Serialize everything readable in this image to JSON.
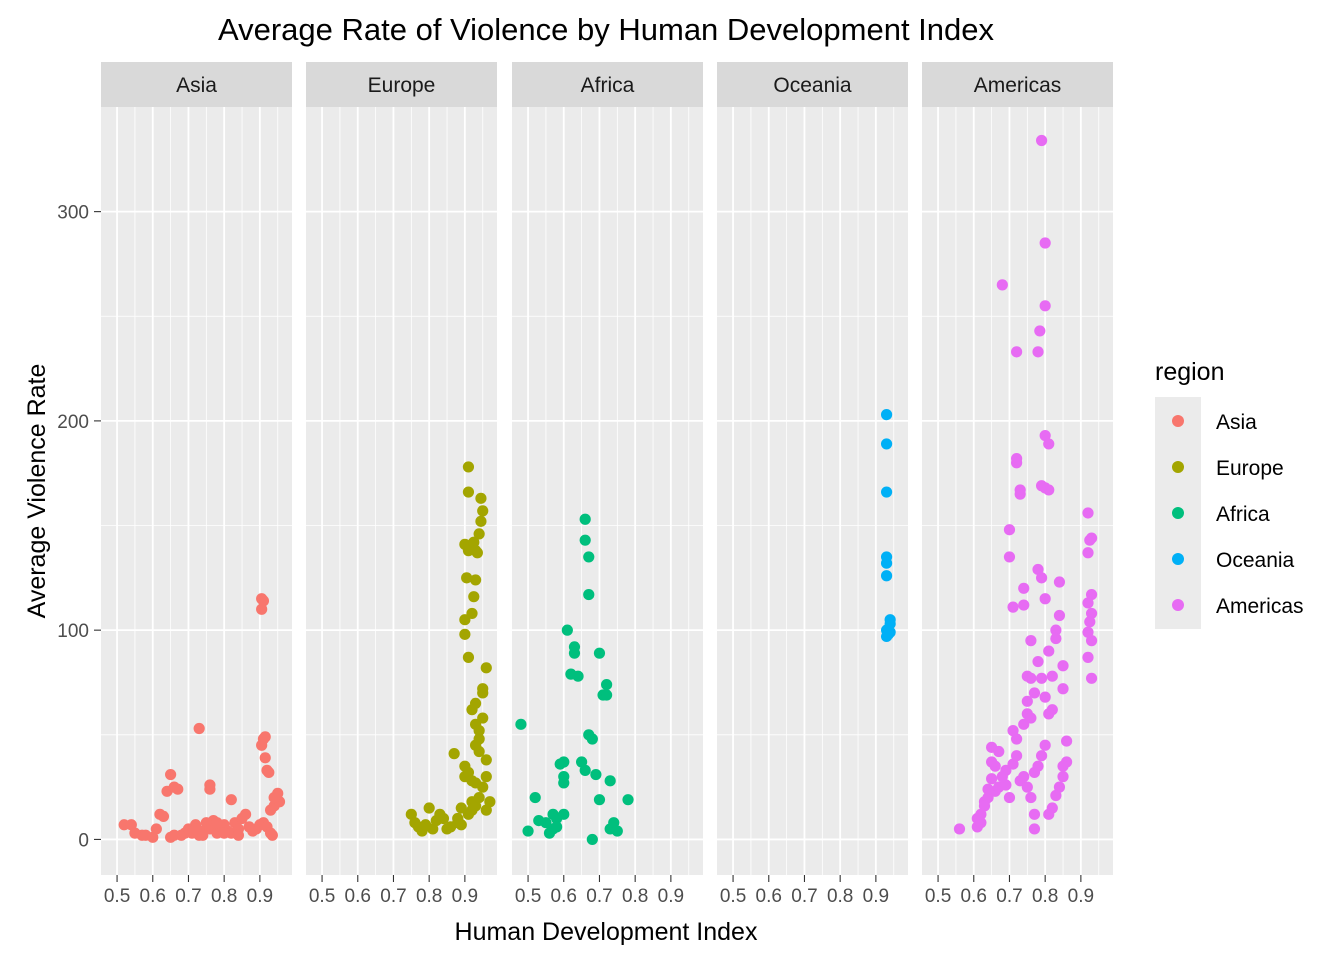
{
  "chart_data": {
    "type": "scatter",
    "title": "Average Rate of Violence by Human Development Index",
    "xlabel": "Human Development Index",
    "ylabel": "Average Violence Rate",
    "xlim": [
      0.455,
      0.99
    ],
    "ylim": [
      -17,
      350
    ],
    "x_ticks": [
      0.5,
      0.6,
      0.7,
      0.8,
      0.9
    ],
    "x_tick_labels": [
      "0.5",
      "0.6",
      "0.7",
      "0.8",
      "0.9"
    ],
    "y_ticks": [
      0,
      100,
      200,
      300
    ],
    "y_tick_labels": [
      "0",
      "100",
      "200",
      "300"
    ],
    "grid": true,
    "facet_by": "region",
    "legend": {
      "title": "region",
      "position": "right",
      "entries": [
        "Asia",
        "Europe",
        "Africa",
        "Oceania",
        "Americas"
      ]
    },
    "series": [
      {
        "name": "Asia",
        "color": "#F8766D",
        "points": [
          [
            0.52,
            7
          ],
          [
            0.54,
            7
          ],
          [
            0.55,
            3
          ],
          [
            0.57,
            2
          ],
          [
            0.58,
            2
          ],
          [
            0.6,
            1
          ],
          [
            0.61,
            5
          ],
          [
            0.62,
            12
          ],
          [
            0.63,
            11
          ],
          [
            0.64,
            23
          ],
          [
            0.65,
            31
          ],
          [
            0.66,
            25
          ],
          [
            0.67,
            24
          ],
          [
            0.73,
            53
          ],
          [
            0.76,
            24
          ],
          [
            0.76,
            26
          ],
          [
            0.82,
            19
          ],
          [
            0.65,
            1
          ],
          [
            0.66,
            2
          ],
          [
            0.68,
            2
          ],
          [
            0.69,
            3
          ],
          [
            0.7,
            5
          ],
          [
            0.71,
            3
          ],
          [
            0.72,
            7
          ],
          [
            0.73,
            2
          ],
          [
            0.74,
            4
          ],
          [
            0.75,
            8
          ],
          [
            0.76,
            5
          ],
          [
            0.77,
            9
          ],
          [
            0.78,
            3
          ],
          [
            0.79,
            6
          ],
          [
            0.8,
            7
          ],
          [
            0.81,
            4
          ],
          [
            0.82,
            3
          ],
          [
            0.83,
            8
          ],
          [
            0.84,
            5
          ],
          [
            0.85,
            10
          ],
          [
            0.86,
            12
          ],
          [
            0.87,
            6
          ],
          [
            0.88,
            4
          ],
          [
            0.89,
            5
          ],
          [
            0.9,
            7
          ],
          [
            0.91,
            8
          ],
          [
            0.92,
            6
          ],
          [
            0.905,
            115
          ],
          [
            0.91,
            114
          ],
          [
            0.905,
            110
          ],
          [
            0.91,
            48
          ],
          [
            0.915,
            49
          ],
          [
            0.905,
            45
          ],
          [
            0.915,
            39
          ],
          [
            0.92,
            33
          ],
          [
            0.925,
            32
          ],
          [
            0.93,
            14
          ],
          [
            0.94,
            16
          ],
          [
            0.95,
            22
          ],
          [
            0.955,
            18
          ],
          [
            0.94,
            20
          ],
          [
            0.935,
            2
          ],
          [
            0.93,
            3
          ],
          [
            0.72,
            5
          ],
          [
            0.74,
            2
          ],
          [
            0.78,
            8
          ],
          [
            0.8,
            3
          ],
          [
            0.84,
            2
          ]
        ]
      },
      {
        "name": "Europe",
        "color": "#A3A500",
        "points": [
          [
            0.75,
            12
          ],
          [
            0.76,
            8
          ],
          [
            0.77,
            6
          ],
          [
            0.78,
            4
          ],
          [
            0.79,
            7
          ],
          [
            0.8,
            15
          ],
          [
            0.81,
            5
          ],
          [
            0.82,
            9
          ],
          [
            0.83,
            12
          ],
          [
            0.84,
            10
          ],
          [
            0.85,
            5
          ],
          [
            0.86,
            6
          ],
          [
            0.87,
            41
          ],
          [
            0.88,
            8
          ],
          [
            0.89,
            7
          ],
          [
            0.9,
            30
          ],
          [
            0.9,
            35
          ],
          [
            0.91,
            32
          ],
          [
            0.92,
            28
          ],
          [
            0.92,
            62
          ],
          [
            0.93,
            65
          ],
          [
            0.93,
            55
          ],
          [
            0.94,
            48
          ],
          [
            0.94,
            42
          ],
          [
            0.95,
            58
          ],
          [
            0.95,
            72
          ],
          [
            0.96,
            82
          ],
          [
            0.95,
            70
          ],
          [
            0.96,
            38
          ],
          [
            0.93,
            27
          ],
          [
            0.92,
            18
          ],
          [
            0.9,
            98
          ],
          [
            0.9,
            105
          ],
          [
            0.91,
            87
          ],
          [
            0.92,
            108
          ],
          [
            0.925,
            116
          ],
          [
            0.93,
            124
          ],
          [
            0.905,
            125
          ],
          [
            0.9,
            141
          ],
          [
            0.91,
            138
          ],
          [
            0.915,
            139
          ],
          [
            0.92,
            140
          ],
          [
            0.925,
            142
          ],
          [
            0.93,
            138
          ],
          [
            0.935,
            137
          ],
          [
            0.94,
            146
          ],
          [
            0.945,
            152
          ],
          [
            0.95,
            157
          ],
          [
            0.945,
            163
          ],
          [
            0.91,
            166
          ],
          [
            0.91,
            178
          ],
          [
            0.91,
            12
          ],
          [
            0.92,
            14
          ],
          [
            0.93,
            16
          ],
          [
            0.94,
            20
          ],
          [
            0.95,
            25
          ],
          [
            0.96,
            30
          ],
          [
            0.96,
            14
          ],
          [
            0.97,
            18
          ],
          [
            0.88,
            10
          ],
          [
            0.89,
            15
          ],
          [
            0.93,
            45
          ],
          [
            0.94,
            52
          ]
        ]
      },
      {
        "name": "Africa",
        "color": "#00BF7D",
        "points": [
          [
            0.48,
            55
          ],
          [
            0.5,
            4
          ],
          [
            0.52,
            20
          ],
          [
            0.53,
            9
          ],
          [
            0.55,
            8
          ],
          [
            0.56,
            3
          ],
          [
            0.57,
            12
          ],
          [
            0.58,
            10
          ],
          [
            0.59,
            36
          ],
          [
            0.6,
            37
          ],
          [
            0.6,
            30
          ],
          [
            0.61,
            100
          ],
          [
            0.6,
            27
          ],
          [
            0.62,
            79
          ],
          [
            0.63,
            92
          ],
          [
            0.63,
            89
          ],
          [
            0.64,
            78
          ],
          [
            0.65,
            37
          ],
          [
            0.66,
            153
          ],
          [
            0.66,
            143
          ],
          [
            0.67,
            135
          ],
          [
            0.67,
            117
          ],
          [
            0.66,
            33
          ],
          [
            0.67,
            50
          ],
          [
            0.68,
            48
          ],
          [
            0.69,
            31
          ],
          [
            0.7,
            89
          ],
          [
            0.7,
            19
          ],
          [
            0.71,
            69
          ],
          [
            0.72,
            74
          ],
          [
            0.72,
            69
          ],
          [
            0.73,
            28
          ],
          [
            0.73,
            5
          ],
          [
            0.74,
            8
          ],
          [
            0.75,
            4
          ],
          [
            0.68,
            0
          ],
          [
            0.78,
            19
          ],
          [
            0.57,
            5
          ],
          [
            0.58,
            6
          ],
          [
            0.6,
            12
          ]
        ]
      },
      {
        "name": "Oceania",
        "color": "#00B0F6",
        "points": [
          [
            0.93,
            203
          ],
          [
            0.93,
            189
          ],
          [
            0.93,
            166
          ],
          [
            0.93,
            135
          ],
          [
            0.93,
            132
          ],
          [
            0.93,
            126
          ],
          [
            0.93,
            100
          ],
          [
            0.94,
            103
          ],
          [
            0.94,
            105
          ],
          [
            0.94,
            99
          ],
          [
            0.935,
            98
          ],
          [
            0.93,
            97
          ]
        ]
      },
      {
        "name": "Americas",
        "color": "#E76BF3",
        "points": [
          [
            0.56,
            5
          ],
          [
            0.61,
            10
          ],
          [
            0.61,
            6
          ],
          [
            0.62,
            8
          ],
          [
            0.63,
            18
          ],
          [
            0.64,
            20
          ],
          [
            0.65,
            37
          ],
          [
            0.65,
            44
          ],
          [
            0.66,
            23
          ],
          [
            0.67,
            25
          ],
          [
            0.68,
            265
          ],
          [
            0.69,
            33
          ],
          [
            0.7,
            135
          ],
          [
            0.7,
            148
          ],
          [
            0.71,
            111
          ],
          [
            0.72,
            182
          ],
          [
            0.72,
            180
          ],
          [
            0.72,
            233
          ],
          [
            0.73,
            167
          ],
          [
            0.73,
            165
          ],
          [
            0.74,
            112
          ],
          [
            0.74,
            120
          ],
          [
            0.75,
            66
          ],
          [
            0.75,
            78
          ],
          [
            0.76,
            95
          ],
          [
            0.76,
            77
          ],
          [
            0.77,
            5
          ],
          [
            0.77,
            12
          ],
          [
            0.78,
            233
          ],
          [
            0.785,
            243
          ],
          [
            0.79,
            334
          ],
          [
            0.8,
            285
          ],
          [
            0.8,
            255
          ],
          [
            0.8,
            193
          ],
          [
            0.81,
            189
          ],
          [
            0.8,
            168
          ],
          [
            0.81,
            167
          ],
          [
            0.79,
            169
          ],
          [
            0.78,
            129
          ],
          [
            0.79,
            125
          ],
          [
            0.8,
            115
          ],
          [
            0.81,
            90
          ],
          [
            0.82,
            78
          ],
          [
            0.82,
            62
          ],
          [
            0.83,
            100
          ],
          [
            0.83,
            96
          ],
          [
            0.84,
            123
          ],
          [
            0.84,
            107
          ],
          [
            0.85,
            83
          ],
          [
            0.85,
            72
          ],
          [
            0.86,
            47
          ],
          [
            0.86,
            37
          ],
          [
            0.85,
            35
          ],
          [
            0.85,
            30
          ],
          [
            0.84,
            25
          ],
          [
            0.83,
            21
          ],
          [
            0.82,
            15
          ],
          [
            0.81,
            12
          ],
          [
            0.71,
            36
          ],
          [
            0.72,
            40
          ],
          [
            0.73,
            28
          ],
          [
            0.74,
            30
          ],
          [
            0.75,
            25
          ],
          [
            0.76,
            20
          ],
          [
            0.77,
            32
          ],
          [
            0.78,
            35
          ],
          [
            0.79,
            40
          ],
          [
            0.8,
            45
          ],
          [
            0.7,
            20
          ],
          [
            0.69,
            26
          ],
          [
            0.68,
            30
          ],
          [
            0.67,
            42
          ],
          [
            0.66,
            35
          ],
          [
            0.65,
            29
          ],
          [
            0.64,
            24
          ],
          [
            0.63,
            16
          ],
          [
            0.62,
            12
          ],
          [
            0.74,
            55
          ],
          [
            0.75,
            60
          ],
          [
            0.76,
            58
          ],
          [
            0.77,
            70
          ],
          [
            0.78,
            85
          ],
          [
            0.79,
            77
          ],
          [
            0.8,
            68
          ],
          [
            0.81,
            60
          ],
          [
            0.72,
            48
          ],
          [
            0.71,
            52
          ],
          [
            0.92,
            156
          ],
          [
            0.925,
            143
          ],
          [
            0.93,
            144
          ],
          [
            0.92,
            137
          ],
          [
            0.93,
            117
          ],
          [
            0.92,
            113
          ],
          [
            0.93,
            108
          ],
          [
            0.925,
            104
          ],
          [
            0.92,
            99
          ],
          [
            0.93,
            95
          ],
          [
            0.92,
            87
          ],
          [
            0.93,
            77
          ]
        ]
      }
    ]
  }
}
